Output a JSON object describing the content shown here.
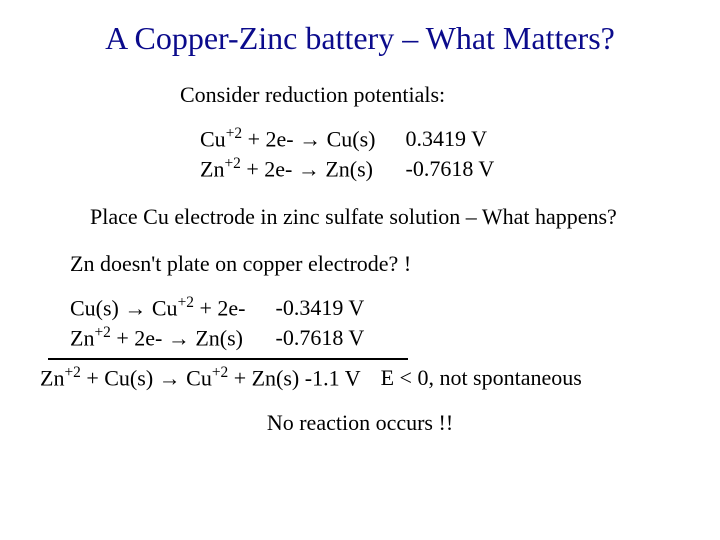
{
  "colors": {
    "title": "#0b0b8c",
    "body": "#000000",
    "background": "#ffffff"
  },
  "title": "A Copper-Zinc battery – What Matters?",
  "subhead": "Consider reduction potentials:",
  "eq1": {
    "lhs": "Cu+2 + 2e- → Cu(s)",
    "rhs": "0.3419 V"
  },
  "eq2": {
    "lhs": "Zn+2 + 2e- → Zn(s)",
    "rhs": "-0.7618 V"
  },
  "question1": "Place Cu electrode in zinc sulfate solution – What happens?",
  "question2": "Zn doesn't plate on copper electrode? !",
  "eq3": {
    "lhs": "Cu(s) → Cu+2 + 2e-",
    "rhs": "-0.3419 V"
  },
  "eq4": {
    "lhs": "Zn+2 + 2e- → Zn(s)",
    "rhs": "-0.7618 V"
  },
  "sum": "Zn+2 + Cu(s) → Cu+2 + Zn(s) -1.1 V",
  "spont": "E < 0, not spontaneous",
  "conclusion": "No reaction occurs !!"
}
